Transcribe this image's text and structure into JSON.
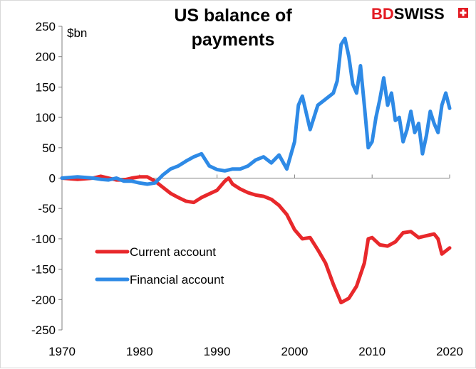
{
  "brand": {
    "bd": "BD",
    "swiss": "SWISS"
  },
  "chart_data": {
    "type": "line",
    "title_line1": "US balance of",
    "title_line2": "payments",
    "unit_label": "$bn",
    "xlim": [
      1970,
      2020
    ],
    "ylim": [
      -250,
      250
    ],
    "x_ticks": [
      1970,
      1980,
      1990,
      2000,
      2010,
      2020
    ],
    "y_ticks": [
      250,
      200,
      150,
      100,
      50,
      0,
      -50,
      -100,
      -150,
      -200,
      -250
    ],
    "grid": false,
    "legend_position": "bottom-left",
    "series": [
      {
        "name": "Current account",
        "color": "#e8282b",
        "x": [
          1970,
          1972,
          1974,
          1975,
          1976,
          1977,
          1978,
          1979,
          1980,
          1981,
          1982,
          1983,
          1984,
          1985,
          1986,
          1987,
          1988,
          1989,
          1990,
          1991,
          1991.5,
          1992,
          1993,
          1994,
          1995,
          1996,
          1997,
          1998,
          1999,
          2000,
          2001,
          2002,
          2003,
          2004,
          2005,
          2006,
          2007,
          2008,
          2009,
          2009.5,
          2010,
          2011,
          2012,
          2013,
          2014,
          2015,
          2016,
          2017,
          2018,
          2018.5,
          2019,
          2020
        ],
        "y": [
          0,
          -2,
          0,
          3,
          0,
          -3,
          -3,
          0,
          2,
          2,
          -5,
          -15,
          -25,
          -32,
          -38,
          -40,
          -32,
          -26,
          -20,
          -5,
          0,
          -10,
          -18,
          -24,
          -28,
          -30,
          -35,
          -45,
          -60,
          -85,
          -100,
          -98,
          -118,
          -140,
          -175,
          -205,
          -198,
          -178,
          -140,
          -100,
          -98,
          -110,
          -112,
          -105,
          -90,
          -88,
          -98,
          -95,
          -92,
          -100,
          -125,
          -115
        ]
      },
      {
        "name": "Financial account",
        "color": "#2e8ae6",
        "x": [
          1970,
          1972,
          1974,
          1975,
          1976,
          1977,
          1978,
          1979,
          1980,
          1981,
          1982,
          1983,
          1984,
          1985,
          1986,
          1987,
          1988,
          1989,
          1990,
          1991,
          1992,
          1993,
          1994,
          1995,
          1996,
          1997,
          1998,
          1999,
          2000,
          2000.5,
          2001,
          2002,
          2002.5,
          2003,
          2004,
          2005,
          2005.5,
          2006,
          2006.5,
          2007,
          2007.5,
          2008,
          2008.5,
          2009,
          2009.5,
          2010,
          2010.5,
          2011,
          2011.5,
          2012,
          2012.5,
          2013,
          2013.5,
          2014,
          2014.5,
          2015,
          2015.5,
          2016,
          2016.5,
          2017,
          2017.5,
          2018,
          2018.5,
          2019,
          2019.5,
          2020
        ],
        "y": [
          0,
          2,
          0,
          -2,
          -3,
          0,
          -5,
          -5,
          -8,
          -10,
          -8,
          5,
          15,
          20,
          28,
          35,
          40,
          20,
          14,
          12,
          15,
          15,
          20,
          30,
          35,
          25,
          38,
          15,
          60,
          120,
          135,
          80,
          100,
          120,
          130,
          140,
          160,
          220,
          230,
          200,
          155,
          140,
          185,
          120,
          50,
          60,
          100,
          130,
          165,
          120,
          140,
          95,
          100,
          60,
          80,
          110,
          75,
          90,
          40,
          70,
          110,
          90,
          75,
          120,
          140,
          115
        ]
      }
    ]
  }
}
